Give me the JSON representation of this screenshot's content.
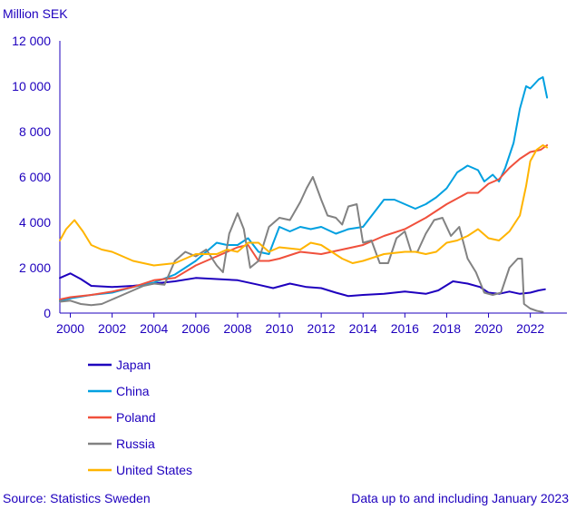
{
  "chart_data": {
    "type": "line",
    "ylabel": "Million SEK",
    "ylim": [
      0,
      12000
    ],
    "yticks": [
      0,
      2000,
      4000,
      6000,
      8000,
      10000,
      12000
    ],
    "ytick_labels": [
      "0",
      "2 000",
      "4 000",
      "6 000",
      "8 000",
      "10 000",
      "12 000"
    ],
    "xlim": [
      1999.5,
      2023.1
    ],
    "xticks": [
      2000,
      2002,
      2004,
      2006,
      2008,
      2010,
      2012,
      2014,
      2016,
      2018,
      2020,
      2022
    ],
    "xtick_labels": [
      "2000",
      "2002",
      "2004",
      "2006",
      "2008",
      "2010",
      "2012",
      "2014",
      "2016",
      "2018",
      "2020",
      "2022"
    ],
    "grid": false,
    "legend_position": "bottom-left",
    "series": [
      {
        "name": "Japan",
        "color": "#1e00be",
        "points": [
          [
            1999.5,
            1550
          ],
          [
            2000.0,
            1750
          ],
          [
            2000.5,
            1500
          ],
          [
            2001.0,
            1200
          ],
          [
            2002.0,
            1150
          ],
          [
            2003.0,
            1200
          ],
          [
            2004.0,
            1300
          ],
          [
            2005.0,
            1400
          ],
          [
            2006.0,
            1550
          ],
          [
            2007.0,
            1500
          ],
          [
            2008.0,
            1450
          ],
          [
            2009.0,
            1250
          ],
          [
            2009.7,
            1100
          ],
          [
            2010.5,
            1300
          ],
          [
            2011.3,
            1150
          ],
          [
            2012.0,
            1100
          ],
          [
            2012.7,
            900
          ],
          [
            2013.3,
            750
          ],
          [
            2014.0,
            800
          ],
          [
            2015.0,
            850
          ],
          [
            2016.0,
            950
          ],
          [
            2017.0,
            850
          ],
          [
            2017.6,
            1000
          ],
          [
            2018.3,
            1400
          ],
          [
            2019.0,
            1300
          ],
          [
            2019.6,
            1150
          ],
          [
            2020.0,
            900
          ],
          [
            2020.5,
            850
          ],
          [
            2021.0,
            950
          ],
          [
            2021.5,
            850
          ],
          [
            2022.0,
            900
          ],
          [
            2022.4,
            1000
          ],
          [
            2022.7,
            1050
          ]
        ]
      },
      {
        "name": "China",
        "color": "#00a0e0",
        "points": [
          [
            1999.5,
            550
          ],
          [
            2000.0,
            650
          ],
          [
            2001.0,
            800
          ],
          [
            2002.0,
            900
          ],
          [
            2003.0,
            1150
          ],
          [
            2004.0,
            1350
          ],
          [
            2005.0,
            1700
          ],
          [
            2006.0,
            2300
          ],
          [
            2007.0,
            3100
          ],
          [
            2007.5,
            3000
          ],
          [
            2008.0,
            3000
          ],
          [
            2008.5,
            3300
          ],
          [
            2009.0,
            2700
          ],
          [
            2009.5,
            2600
          ],
          [
            2010.0,
            3800
          ],
          [
            2010.5,
            3600
          ],
          [
            2011.0,
            3800
          ],
          [
            2011.5,
            3700
          ],
          [
            2012.0,
            3800
          ],
          [
            2012.7,
            3500
          ],
          [
            2013.3,
            3700
          ],
          [
            2014.0,
            3800
          ],
          [
            2014.5,
            4400
          ],
          [
            2015.0,
            5000
          ],
          [
            2015.5,
            5000
          ],
          [
            2016.0,
            4800
          ],
          [
            2016.5,
            4600
          ],
          [
            2017.0,
            4800
          ],
          [
            2017.5,
            5100
          ],
          [
            2018.0,
            5500
          ],
          [
            2018.5,
            6200
          ],
          [
            2019.0,
            6500
          ],
          [
            2019.5,
            6300
          ],
          [
            2019.8,
            5800
          ],
          [
            2020.2,
            6100
          ],
          [
            2020.5,
            5800
          ],
          [
            2020.8,
            6400
          ],
          [
            2021.2,
            7500
          ],
          [
            2021.5,
            9000
          ],
          [
            2021.8,
            10000
          ],
          [
            2022.0,
            9900
          ],
          [
            2022.2,
            10100
          ],
          [
            2022.4,
            10300
          ],
          [
            2022.6,
            10400
          ],
          [
            2022.8,
            9500
          ]
        ]
      },
      {
        "name": "Poland",
        "color": "#f0503c",
        "points": [
          [
            1999.5,
            600
          ],
          [
            2000.0,
            700
          ],
          [
            2001.0,
            800
          ],
          [
            2002.0,
            950
          ],
          [
            2003.0,
            1150
          ],
          [
            2004.0,
            1450
          ],
          [
            2005.0,
            1550
          ],
          [
            2006.0,
            2100
          ],
          [
            2007.0,
            2500
          ],
          [
            2008.0,
            2900
          ],
          [
            2008.5,
            3000
          ],
          [
            2009.0,
            2300
          ],
          [
            2009.5,
            2300
          ],
          [
            2010.0,
            2400
          ],
          [
            2011.0,
            2700
          ],
          [
            2012.0,
            2600
          ],
          [
            2013.0,
            2800
          ],
          [
            2014.0,
            3000
          ],
          [
            2015.0,
            3400
          ],
          [
            2016.0,
            3700
          ],
          [
            2017.0,
            4200
          ],
          [
            2018.0,
            4800
          ],
          [
            2019.0,
            5300
          ],
          [
            2019.5,
            5300
          ],
          [
            2020.0,
            5700
          ],
          [
            2020.5,
            5900
          ],
          [
            2021.0,
            6400
          ],
          [
            2021.5,
            6800
          ],
          [
            2022.0,
            7100
          ],
          [
            2022.5,
            7200
          ],
          [
            2022.8,
            7400
          ]
        ]
      },
      {
        "name": "Russia",
        "color": "#828282",
        "points": [
          [
            1999.5,
            500
          ],
          [
            2000.0,
            550
          ],
          [
            2000.5,
            400
          ],
          [
            2001.0,
            350
          ],
          [
            2001.5,
            400
          ],
          [
            2002.0,
            600
          ],
          [
            2002.5,
            800
          ],
          [
            2003.0,
            1000
          ],
          [
            2003.5,
            1200
          ],
          [
            2004.0,
            1300
          ],
          [
            2004.5,
            1250
          ],
          [
            2005.0,
            2300
          ],
          [
            2005.5,
            2700
          ],
          [
            2006.0,
            2500
          ],
          [
            2006.5,
            2800
          ],
          [
            2007.0,
            2100
          ],
          [
            2007.3,
            1800
          ],
          [
            2007.6,
            3500
          ],
          [
            2008.0,
            4400
          ],
          [
            2008.3,
            3700
          ],
          [
            2008.6,
            2000
          ],
          [
            2009.0,
            2300
          ],
          [
            2009.5,
            3800
          ],
          [
            2010.0,
            4200
          ],
          [
            2010.5,
            4100
          ],
          [
            2011.0,
            4900
          ],
          [
            2011.3,
            5500
          ],
          [
            2011.6,
            6000
          ],
          [
            2012.0,
            5000
          ],
          [
            2012.3,
            4300
          ],
          [
            2012.7,
            4200
          ],
          [
            2013.0,
            3900
          ],
          [
            2013.3,
            4700
          ],
          [
            2013.7,
            4800
          ],
          [
            2014.0,
            3100
          ],
          [
            2014.4,
            3200
          ],
          [
            2014.8,
            2200
          ],
          [
            2015.2,
            2200
          ],
          [
            2015.6,
            3300
          ],
          [
            2016.0,
            3600
          ],
          [
            2016.3,
            2700
          ],
          [
            2016.6,
            2700
          ],
          [
            2017.0,
            3500
          ],
          [
            2017.4,
            4100
          ],
          [
            2017.8,
            4200
          ],
          [
            2018.2,
            3400
          ],
          [
            2018.6,
            3800
          ],
          [
            2019.0,
            2400
          ],
          [
            2019.4,
            1800
          ],
          [
            2019.8,
            900
          ],
          [
            2020.2,
            800
          ],
          [
            2020.6,
            900
          ],
          [
            2021.0,
            2000
          ],
          [
            2021.4,
            2400
          ],
          [
            2021.6,
            2400
          ],
          [
            2021.7,
            400
          ],
          [
            2022.0,
            200
          ],
          [
            2022.3,
            100
          ],
          [
            2022.6,
            50
          ]
        ]
      },
      {
        "name": "United States",
        "color": "#ffb400",
        "points": [
          [
            1999.5,
            3200
          ],
          [
            1999.8,
            3700
          ],
          [
            2000.2,
            4100
          ],
          [
            2000.6,
            3600
          ],
          [
            2001.0,
            3000
          ],
          [
            2001.5,
            2800
          ],
          [
            2002.0,
            2700
          ],
          [
            2003.0,
            2300
          ],
          [
            2004.0,
            2100
          ],
          [
            2005.0,
            2200
          ],
          [
            2006.0,
            2600
          ],
          [
            2007.0,
            2600
          ],
          [
            2007.5,
            2800
          ],
          [
            2008.0,
            2700
          ],
          [
            2008.5,
            3100
          ],
          [
            2009.0,
            3100
          ],
          [
            2009.5,
            2700
          ],
          [
            2010.0,
            2900
          ],
          [
            2011.0,
            2800
          ],
          [
            2011.5,
            3100
          ],
          [
            2012.0,
            3000
          ],
          [
            2012.5,
            2700
          ],
          [
            2013.0,
            2400
          ],
          [
            2013.5,
            2200
          ],
          [
            2014.0,
            2300
          ],
          [
            2015.0,
            2600
          ],
          [
            2016.0,
            2700
          ],
          [
            2016.5,
            2700
          ],
          [
            2017.0,
            2600
          ],
          [
            2017.5,
            2700
          ],
          [
            2018.0,
            3100
          ],
          [
            2018.5,
            3200
          ],
          [
            2019.0,
            3400
          ],
          [
            2019.5,
            3700
          ],
          [
            2020.0,
            3300
          ],
          [
            2020.5,
            3200
          ],
          [
            2021.0,
            3600
          ],
          [
            2021.5,
            4300
          ],
          [
            2021.8,
            5600
          ],
          [
            2022.0,
            6700
          ],
          [
            2022.3,
            7200
          ],
          [
            2022.6,
            7400
          ],
          [
            2022.8,
            7300
          ]
        ]
      }
    ]
  },
  "footer": {
    "source": "Source:  Statistics Sweden",
    "note": "Data up to and including January 2023"
  }
}
